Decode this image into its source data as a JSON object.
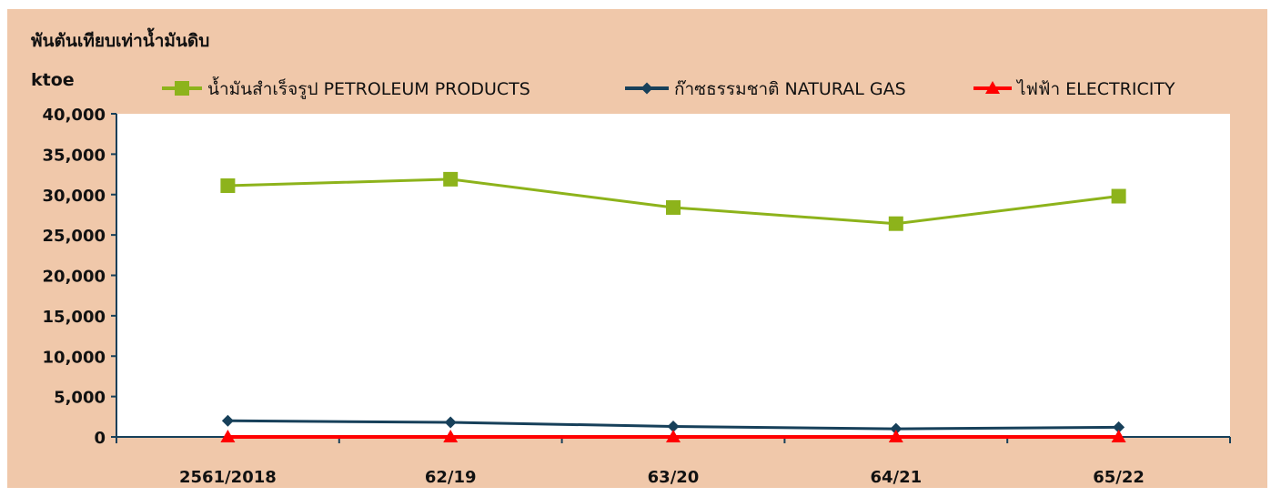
{
  "chart_data": {
    "type": "line",
    "title": "พันตันเทียบเท่าน้ำมันดิบ",
    "ylabel": "ktoe",
    "xlabel": "",
    "categories": [
      "2561/2018",
      "62/19",
      "63/20",
      "64/21",
      "65/22"
    ],
    "ylim": [
      0,
      40000
    ],
    "yticks": [
      "0",
      "5,000",
      "10,000",
      "15,000",
      "20,000",
      "25,000",
      "30,000",
      "35,000",
      "40,000"
    ],
    "grid": false,
    "legend_position": "top",
    "series": [
      {
        "name": "น้ำมันสำเร็จรูป PETROLEUM PRODUCTS",
        "values": [
          31100,
          31900,
          28400,
          26400,
          29800
        ],
        "color": "#8DB31B",
        "marker": "square"
      },
      {
        "name": "ก๊าซธรรมชาติ NATURAL GAS",
        "values": [
          2000,
          1800,
          1300,
          1000,
          1200
        ],
        "color": "#17405A",
        "marker": "diamond"
      },
      {
        "name": "ไฟฟ้า ELECTRICITY",
        "values": [
          0,
          0,
          0,
          0,
          0
        ],
        "color": "#FF0000",
        "marker": "triangle"
      }
    ],
    "colors": {
      "background": "#F0C8AA",
      "plot_area": "#FFFFFF",
      "axis": "#17405A",
      "text": "#111111"
    }
  }
}
